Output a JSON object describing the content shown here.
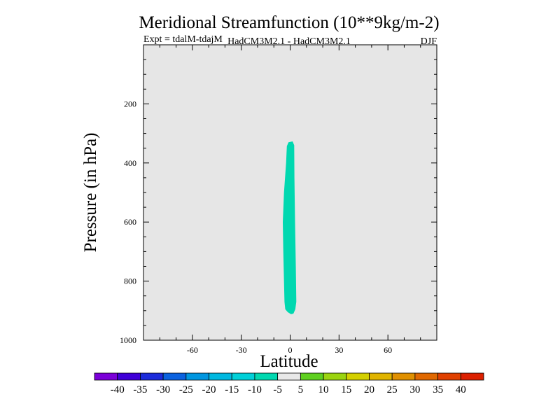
{
  "chart_data": {
    "type": "contour",
    "title": "Meridional Streamfunction (10**9kg/m-2)",
    "subtitle_left": "Expt = tdalM-tdajM",
    "subtitle_center": "HadCM3M2.1 - HadCM3M2.1",
    "subtitle_right": "DJF",
    "xlabel": "Latitude",
    "ylabel": "Pressure (in hPa)",
    "xlim": [
      -90,
      90
    ],
    "ylim": [
      1000,
      0
    ],
    "xticks": [
      -60,
      -30,
      0,
      30,
      60
    ],
    "yticks": [
      200,
      400,
      600,
      800,
      1000
    ],
    "background_color": "#e6e6e6",
    "contour_regions": [
      {
        "level_range": [
          -10,
          -5
        ],
        "color": "#00d8b0",
        "outline": [
          [
            1.5,
            327
          ],
          [
            2.5,
            340
          ],
          [
            2.6,
            450
          ],
          [
            3,
            600
          ],
          [
            3.5,
            750
          ],
          [
            3.8,
            870
          ],
          [
            3.2,
            895
          ],
          [
            2,
            910
          ],
          [
            0.5,
            912
          ],
          [
            -1.5,
            905
          ],
          [
            -3,
            895
          ],
          [
            -3.5,
            870
          ],
          [
            -4.2,
            700
          ],
          [
            -4.5,
            600
          ],
          [
            -3.8,
            500
          ],
          [
            -2.5,
            400
          ],
          [
            -2,
            343
          ],
          [
            -1,
            330
          ]
        ]
      }
    ],
    "colorbar": {
      "tick_labels": [
        "-40",
        "-35",
        "-30",
        "-25",
        "-20",
        "-15",
        "-10",
        "-5",
        "5",
        "10",
        "15",
        "20",
        "25",
        "30",
        "35",
        "40"
      ],
      "colors": [
        "#7b00d8",
        "#3f00d8",
        "#1c2cdb",
        "#0b62df",
        "#0096e0",
        "#00b8e0",
        "#00d0d8",
        "#00d8b0",
        "#e8e8e8",
        "#5fd020",
        "#9bd410",
        "#d4d000",
        "#e0b400",
        "#e09000",
        "#e06800",
        "#e04000",
        "#dc2000"
      ]
    }
  }
}
